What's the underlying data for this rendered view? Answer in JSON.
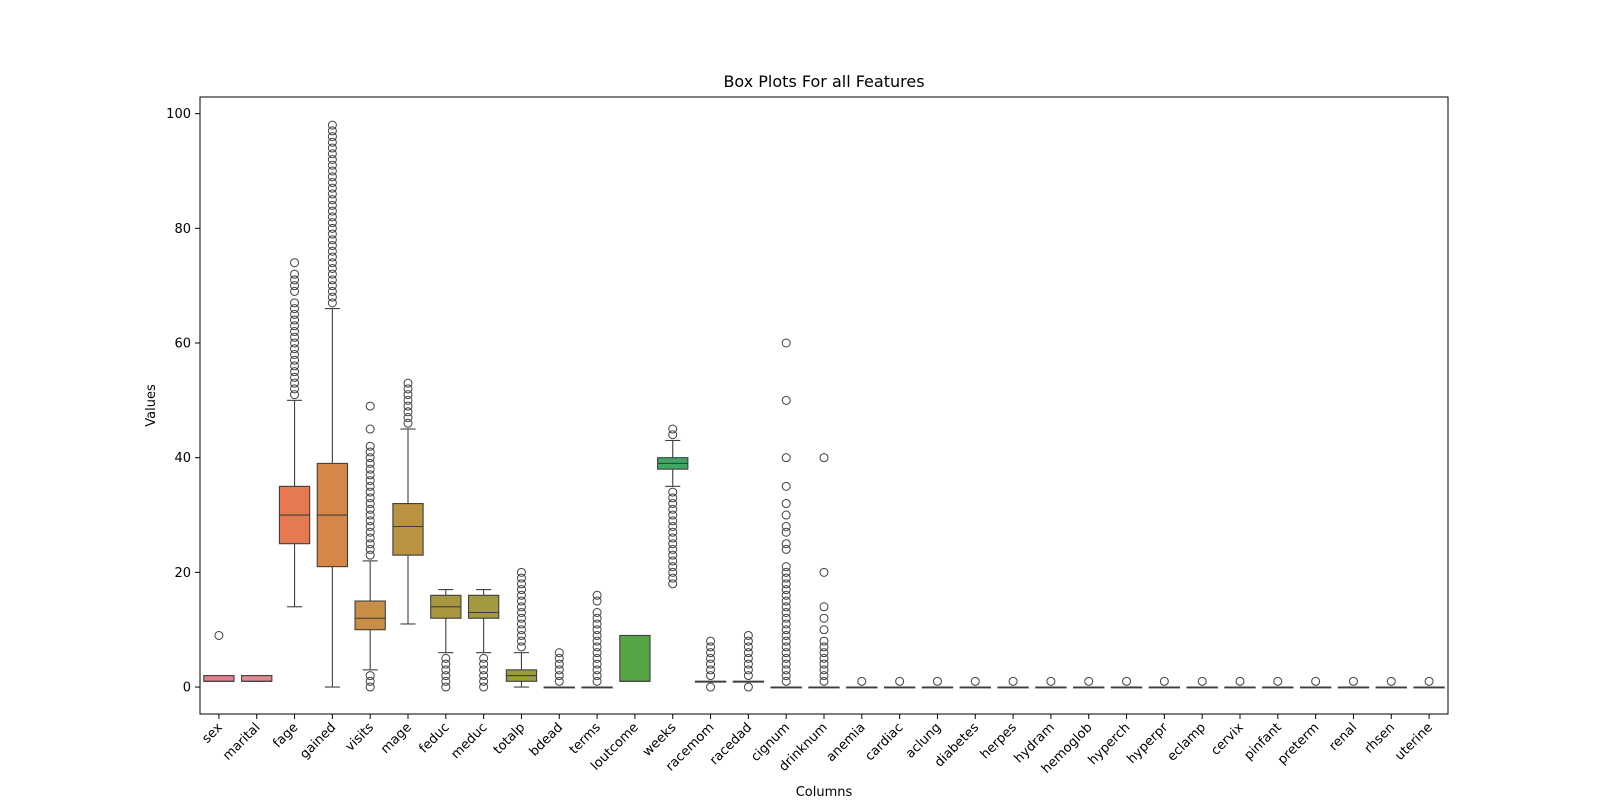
{
  "chart_data": {
    "type": "box",
    "title": "Box Plots For all Features",
    "xlabel": "Columns",
    "ylabel": "Values",
    "ylim": [
      -4.7,
      102.9
    ],
    "yticks": [
      0,
      20,
      40,
      60,
      80,
      100
    ],
    "grid": false,
    "legend": "none",
    "series": [
      {
        "name": "sex",
        "color": "#e67d8c",
        "q1": 1,
        "median": 1,
        "q3": 2,
        "whisker_low": 1,
        "whisker_high": 2,
        "outliers": [
          9
        ]
      },
      {
        "name": "marital",
        "color": "#e28a90",
        "q1": 1,
        "median": 1,
        "q3": 2,
        "whisker_low": 1,
        "whisker_high": 2,
        "outliers": []
      },
      {
        "name": "fage",
        "color": "#e6794f",
        "q1": 25,
        "median": 30,
        "q3": 35,
        "whisker_low": 14,
        "whisker_high": 50,
        "outliers": [
          51,
          52,
          53,
          54,
          55,
          56,
          57,
          58,
          59,
          60,
          61,
          62,
          63,
          64,
          65,
          66,
          67,
          69,
          70,
          71,
          72,
          74
        ]
      },
      {
        "name": "gained",
        "color": "#d5874a",
        "q1": 21,
        "median": 30,
        "q3": 39,
        "whisker_low": 0,
        "whisker_high": 66,
        "outliers": [
          67,
          68,
          69,
          70,
          71,
          72,
          73,
          74,
          75,
          76,
          77,
          78,
          79,
          80,
          81,
          82,
          83,
          84,
          85,
          86,
          87,
          88,
          89,
          90,
          91,
          92,
          93,
          94,
          95,
          96,
          97,
          98
        ]
      },
      {
        "name": "visits",
        "color": "#c98e45",
        "q1": 10,
        "median": 12,
        "q3": 15,
        "whisker_low": 3,
        "whisker_high": 22,
        "outliers": [
          0,
          1,
          2,
          23,
          24,
          25,
          26,
          27,
          28,
          29,
          30,
          31,
          32,
          33,
          34,
          35,
          36,
          37,
          38,
          39,
          40,
          41,
          42,
          45,
          49
        ]
      },
      {
        "name": "mage",
        "color": "#b99341",
        "q1": 23,
        "median": 28,
        "q3": 32,
        "whisker_low": 11,
        "whisker_high": 45,
        "outliers": [
          46,
          47,
          48,
          49,
          50,
          51,
          52,
          53
        ]
      },
      {
        "name": "feduc",
        "color": "#a99640",
        "q1": 12,
        "median": 14,
        "q3": 16,
        "whisker_low": 6,
        "whisker_high": 17,
        "outliers": [
          0,
          1,
          2,
          3,
          4,
          5
        ]
      },
      {
        "name": "meduc",
        "color": "#a29a40",
        "q1": 12,
        "median": 13,
        "q3": 16,
        "whisker_low": 6,
        "whisker_high": 17,
        "outliers": [
          0,
          1,
          2,
          3,
          4,
          5
        ]
      },
      {
        "name": "totalp",
        "color": "#9d9b3f",
        "q1": 1,
        "median": 2,
        "q3": 3,
        "whisker_low": 0,
        "whisker_high": 6,
        "outliers": [
          7,
          8,
          9,
          10,
          11,
          12,
          13,
          14,
          15,
          16,
          17,
          18,
          19,
          20
        ]
      },
      {
        "name": "bdead",
        "color": "#8e9f3e",
        "q1": 0,
        "median": 0,
        "q3": 0,
        "whisker_low": 0,
        "whisker_high": 0,
        "outliers": [
          1,
          2,
          3,
          4,
          5,
          6
        ]
      },
      {
        "name": "terms",
        "color": "#7ea33d",
        "q1": 0,
        "median": 0,
        "q3": 0,
        "whisker_low": 0,
        "whisker_high": 0,
        "outliers": [
          1,
          2,
          3,
          4,
          5,
          6,
          7,
          8,
          9,
          10,
          11,
          12,
          13,
          15,
          16
        ]
      },
      {
        "name": "loutcome",
        "color": "#56a545",
        "q1": 1,
        "median": 1,
        "q3": 9,
        "whisker_low": 1,
        "whisker_high": 9,
        "outliers": []
      },
      {
        "name": "weeks",
        "color": "#3ea764",
        "q1": 38,
        "median": 39,
        "q3": 40,
        "whisker_low": 35,
        "whisker_high": 43,
        "outliers": [
          18,
          19,
          20,
          21,
          22,
          23,
          24,
          25,
          26,
          27,
          28,
          29,
          30,
          31,
          32,
          33,
          34,
          44,
          45
        ]
      },
      {
        "name": "racemom",
        "color": "#3ea57c",
        "q1": 1,
        "median": 1,
        "q3": 1,
        "whisker_low": 1,
        "whisker_high": 1,
        "outliers": [
          0,
          2,
          3,
          4,
          5,
          6,
          7,
          8
        ]
      },
      {
        "name": "racedad",
        "color": "#3da38b",
        "q1": 1,
        "median": 1,
        "q3": 1,
        "whisker_low": 1,
        "whisker_high": 1,
        "outliers": [
          0,
          2,
          3,
          4,
          5,
          6,
          7,
          8,
          9
        ]
      },
      {
        "name": "cignum",
        "color": "#3ca298",
        "q1": 0,
        "median": 0,
        "q3": 0,
        "whisker_low": 0,
        "whisker_high": 0,
        "outliers": [
          1,
          2,
          3,
          4,
          5,
          6,
          7,
          8,
          9,
          10,
          11,
          12,
          13,
          14,
          15,
          16,
          17,
          18,
          19,
          20,
          21,
          24,
          25,
          27,
          28,
          30,
          32,
          35,
          40,
          50,
          60
        ]
      },
      {
        "name": "drinknum",
        "color": "#3ca1a3",
        "q1": 0,
        "median": 0,
        "q3": 0,
        "whisker_low": 0,
        "whisker_high": 0,
        "outliers": [
          1,
          2,
          3,
          4,
          5,
          6,
          7,
          8,
          10,
          12,
          14,
          20,
          40
        ]
      },
      {
        "name": "anemia",
        "color": "#3d9fad",
        "q1": 0,
        "median": 0,
        "q3": 0,
        "whisker_low": 0,
        "whisker_high": 0,
        "outliers": [
          1
        ]
      },
      {
        "name": "cardiac",
        "color": "#3f9db8",
        "q1": 0,
        "median": 0,
        "q3": 0,
        "whisker_low": 0,
        "whisker_high": 0,
        "outliers": [
          1
        ]
      },
      {
        "name": "aclung",
        "color": "#429bc4",
        "q1": 0,
        "median": 0,
        "q3": 0,
        "whisker_low": 0,
        "whisker_high": 0,
        "outliers": [
          1
        ]
      },
      {
        "name": "diabetes",
        "color": "#4a98d2",
        "q1": 0,
        "median": 0,
        "q3": 0,
        "whisker_low": 0,
        "whisker_high": 0,
        "outliers": [
          1
        ]
      },
      {
        "name": "herpes",
        "color": "#5a93df",
        "q1": 0,
        "median": 0,
        "q3": 0,
        "whisker_low": 0,
        "whisker_high": 0,
        "outliers": [
          1
        ]
      },
      {
        "name": "hydram",
        "color": "#6f8de6",
        "q1": 0,
        "median": 0,
        "q3": 0,
        "whisker_low": 0,
        "whisker_high": 0,
        "outliers": [
          1
        ]
      },
      {
        "name": "hemoglob",
        "color": "#8487e8",
        "q1": 0,
        "median": 0,
        "q3": 0,
        "whisker_low": 0,
        "whisker_high": 0,
        "outliers": [
          1
        ]
      },
      {
        "name": "hyperch",
        "color": "#9a82e6",
        "q1": 0,
        "median": 0,
        "q3": 0,
        "whisker_low": 0,
        "whisker_high": 0,
        "outliers": [
          1
        ]
      },
      {
        "name": "hyperpr",
        "color": "#ad7de2",
        "q1": 0,
        "median": 0,
        "q3": 0,
        "whisker_low": 0,
        "whisker_high": 0,
        "outliers": [
          1
        ]
      },
      {
        "name": "eclamp",
        "color": "#bf78dc",
        "q1": 0,
        "median": 0,
        "q3": 0,
        "whisker_low": 0,
        "whisker_high": 0,
        "outliers": [
          1
        ]
      },
      {
        "name": "cervix",
        "color": "#d274d4",
        "q1": 0,
        "median": 0,
        "q3": 0,
        "whisker_low": 0,
        "whisker_high": 0,
        "outliers": [
          1
        ]
      },
      {
        "name": "pinfant",
        "color": "#df72c6",
        "q1": 0,
        "median": 0,
        "q3": 0,
        "whisker_low": 0,
        "whisker_high": 0,
        "outliers": [
          1
        ]
      },
      {
        "name": "preterm",
        "color": "#e374b6",
        "q1": 0,
        "median": 0,
        "q3": 0,
        "whisker_low": 0,
        "whisker_high": 0,
        "outliers": [
          1
        ]
      },
      {
        "name": "renal",
        "color": "#e577a6",
        "q1": 0,
        "median": 0,
        "q3": 0,
        "whisker_low": 0,
        "whisker_high": 0,
        "outliers": [
          1
        ]
      },
      {
        "name": "rhsen",
        "color": "#e67a97",
        "q1": 0,
        "median": 0,
        "q3": 0,
        "whisker_low": 0,
        "whisker_high": 0,
        "outliers": [
          1
        ]
      },
      {
        "name": "uterine",
        "color": "#e77c8a",
        "q1": 0,
        "median": 0,
        "q3": 0,
        "whisker_low": 0,
        "whisker_high": 0,
        "outliers": [
          1
        ]
      }
    ]
  }
}
